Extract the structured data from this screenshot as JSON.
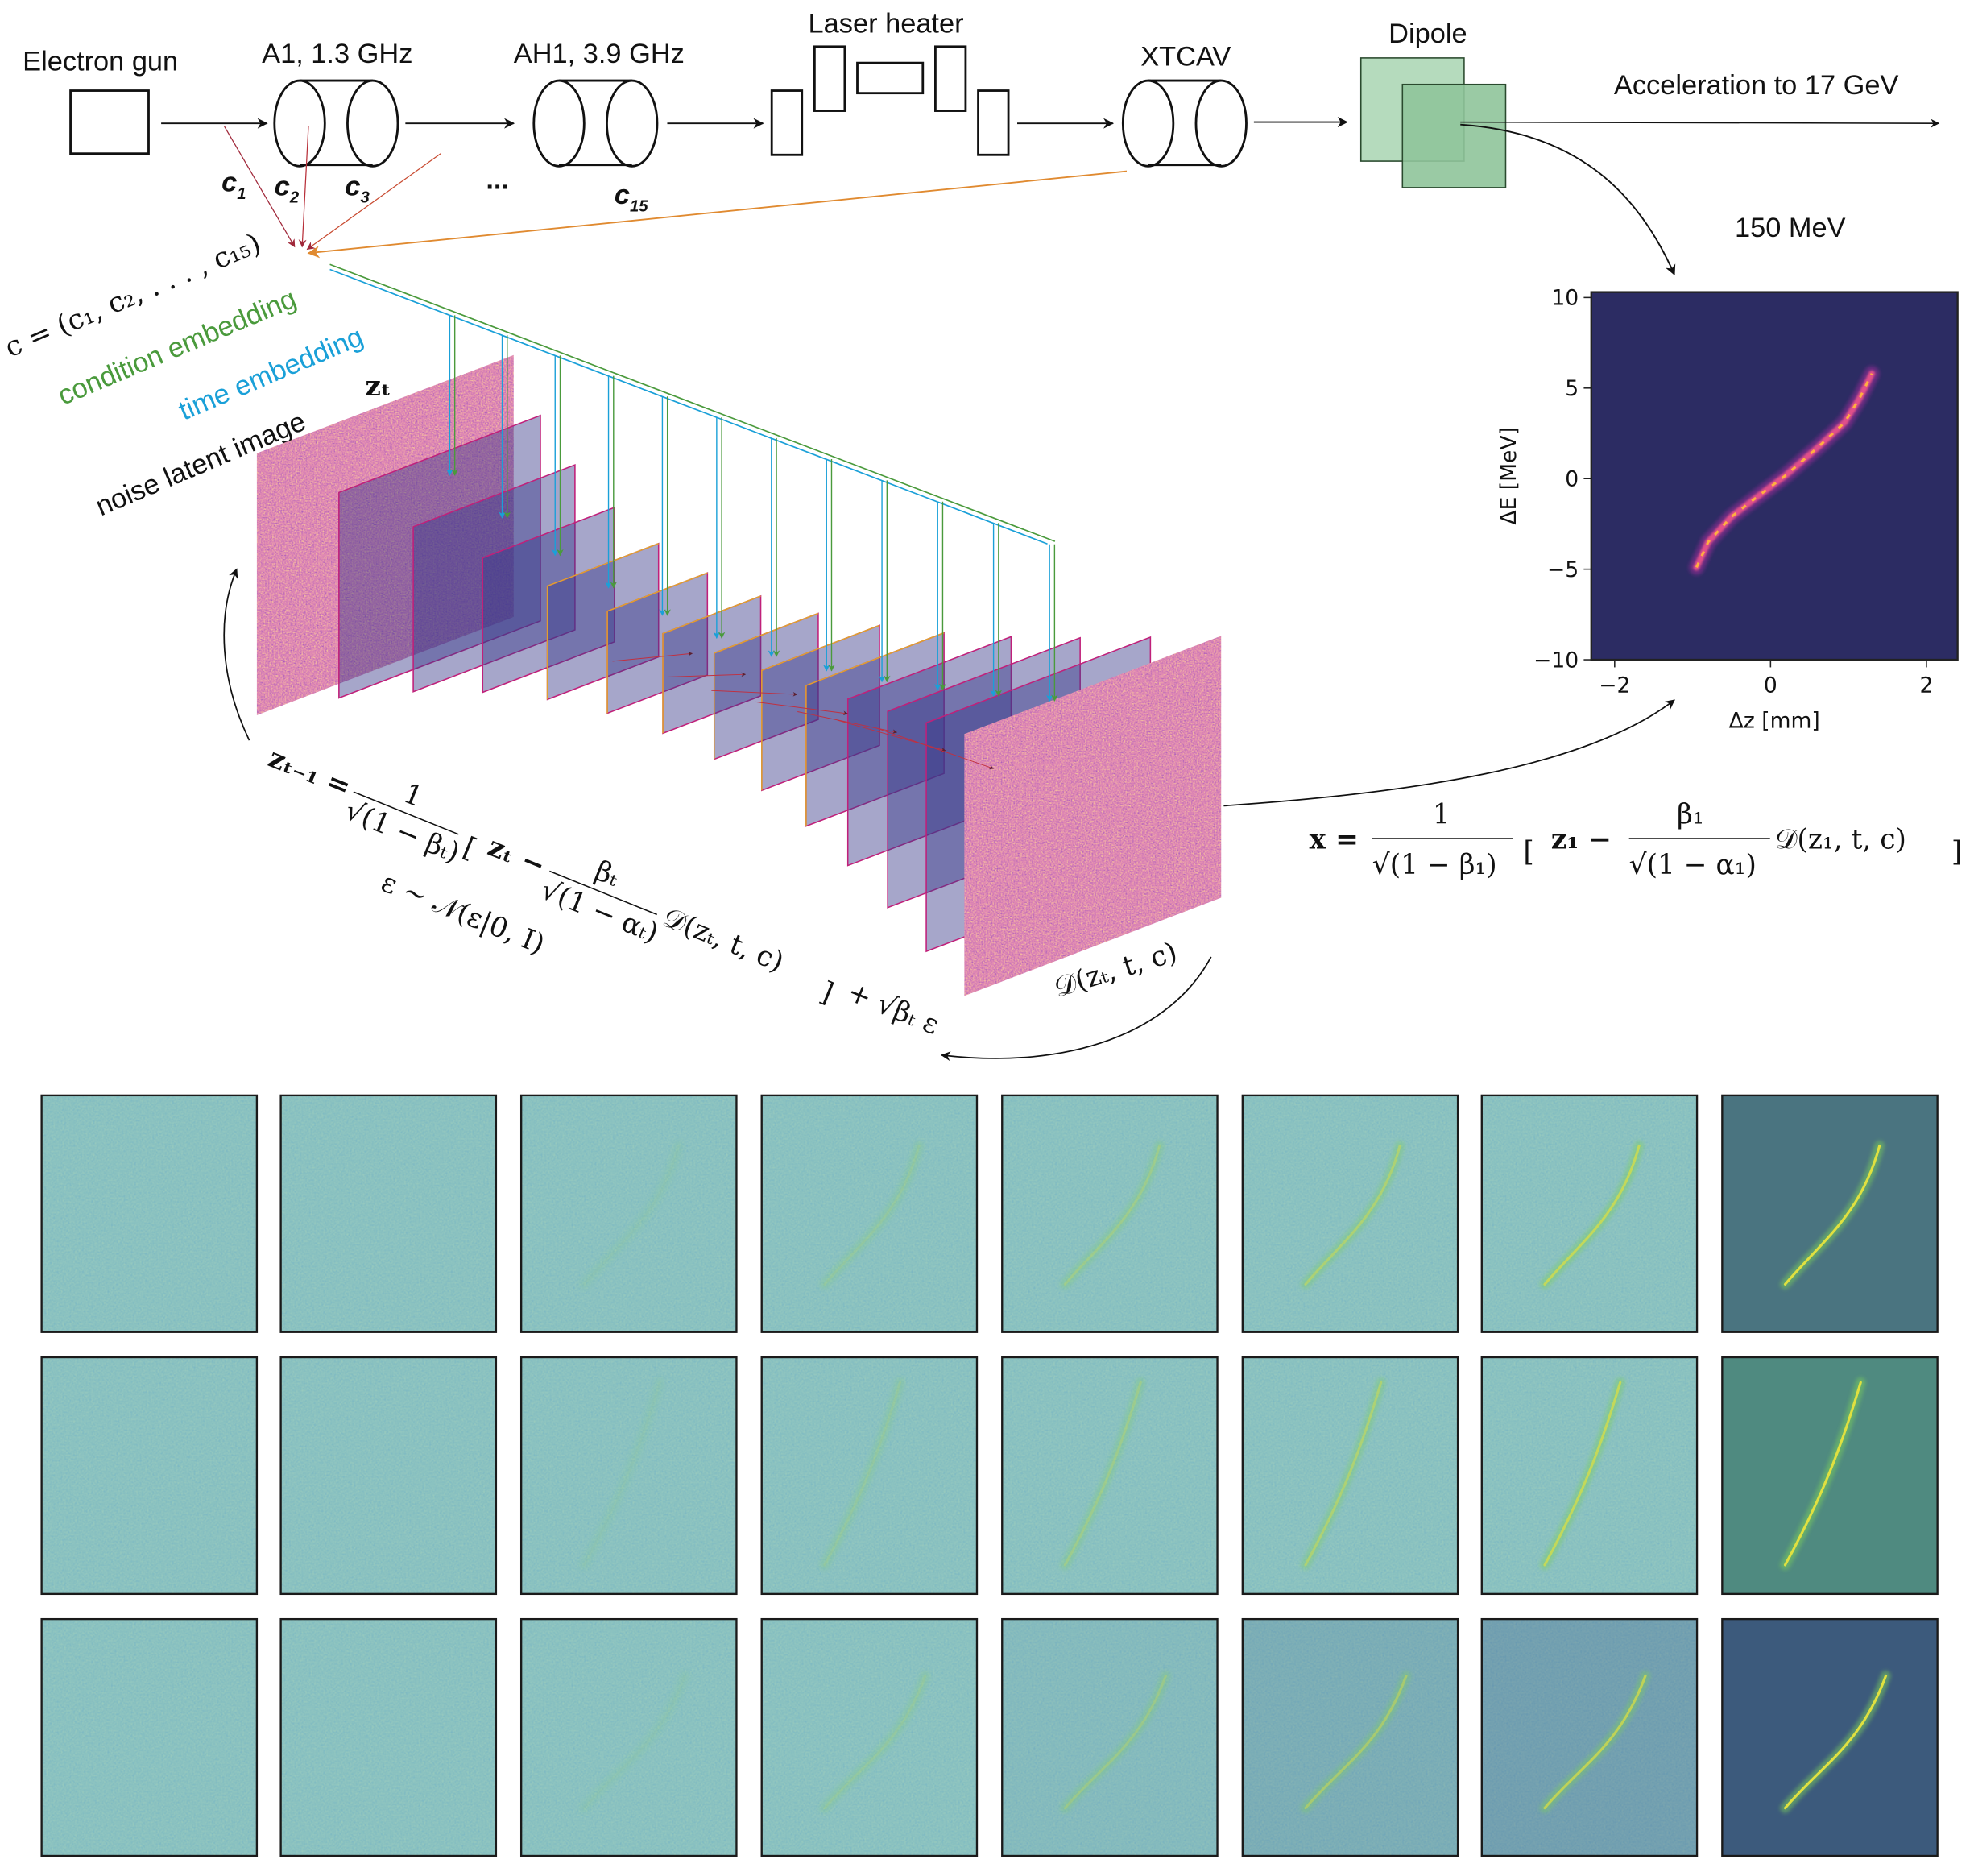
{
  "beamline": {
    "electron_gun": "Electron gun",
    "a1": "A1, 1.3 GHz",
    "ah1": "AH1, 3.9 GHz",
    "laser_heater": "Laser heater",
    "xtcav": "XTCAV",
    "dipole": "Dipole",
    "acceleration": "Acceleration to 17 GeV",
    "energy": "150 MeV",
    "controls": [
      {
        "base": "c",
        "sub": "1"
      },
      {
        "base": "c",
        "sub": "2"
      },
      {
        "base": "c",
        "sub": "3"
      },
      {
        "base": "c",
        "sub": "15"
      }
    ],
    "ellipsis": "..."
  },
  "labels": {
    "condition_vector": "c = (c₁, c₂, . . . , c₁₅)",
    "condition_embedding": "condition embedding",
    "time_embedding": "time embedding",
    "noise_latent_image": "noise latent image",
    "zt": "zₜ",
    "denoiser": "𝒟(zₜ, t, c)"
  },
  "equations": {
    "reverse_step": {
      "lhs": "zₜ₋₁ =",
      "frac1_num": "1",
      "frac1_den": "√(1 − βₜ)",
      "bracket_open": "[",
      "zt": "zₜ −",
      "frac2_num": "βₜ",
      "frac2_den": "√(1 − αₜ)",
      "denoiser": "𝒟(zₜ, t, c)",
      "bracket_close": "]",
      "noise_term": "+ √βₜ ε",
      "noise_dist": "ε ∼ 𝒩(ε|0, I)"
    },
    "final": {
      "lhs": "x =",
      "frac1_num": "1",
      "frac1_den": "√(1 − β₁)",
      "bracket_open": "[",
      "z1": "z₁ −",
      "frac2_num": "β₁",
      "frac2_den": "√(1 − α₁)",
      "denoiser": "𝒟(z₁, t, c)",
      "bracket_close": "]"
    }
  },
  "colors": {
    "condition": "#4a9a3c",
    "time": "#1aa0d8",
    "plate_fill": "#3a3a8a",
    "plate_edge": "#c0207a",
    "plot_bg": "#2c2c63",
    "dipole": "#8fc49a",
    "c1_arrow": "#a0283a",
    "xtcav_arrow": "#e08a30"
  },
  "chart_data": {
    "type": "heatmap",
    "title": "150 MeV",
    "xlabel": "Δz [mm]",
    "ylabel": "ΔE [MeV]",
    "xlim": [
      -2.3,
      2.4
    ],
    "ylim": [
      -10,
      10.3
    ],
    "xticks": [
      "−2",
      "0",
      "2"
    ],
    "xtick_values": [
      -2,
      0,
      2
    ],
    "yticks": [
      "10",
      "5",
      "0",
      "−5",
      "−10"
    ],
    "ytick_values": [
      10,
      5,
      0,
      -5,
      -10
    ],
    "colormap": "magma",
    "grid": false,
    "beam_trace": [
      [
        -0.95,
        -4.9
      ],
      [
        -0.8,
        -3.5
      ],
      [
        -0.5,
        -2.1
      ],
      [
        -0.2,
        -1.1
      ],
      [
        0.2,
        0.2
      ],
      [
        0.6,
        1.7
      ],
      [
        0.95,
        3.1
      ],
      [
        1.15,
        4.5
      ],
      [
        1.3,
        5.8
      ]
    ]
  }
}
